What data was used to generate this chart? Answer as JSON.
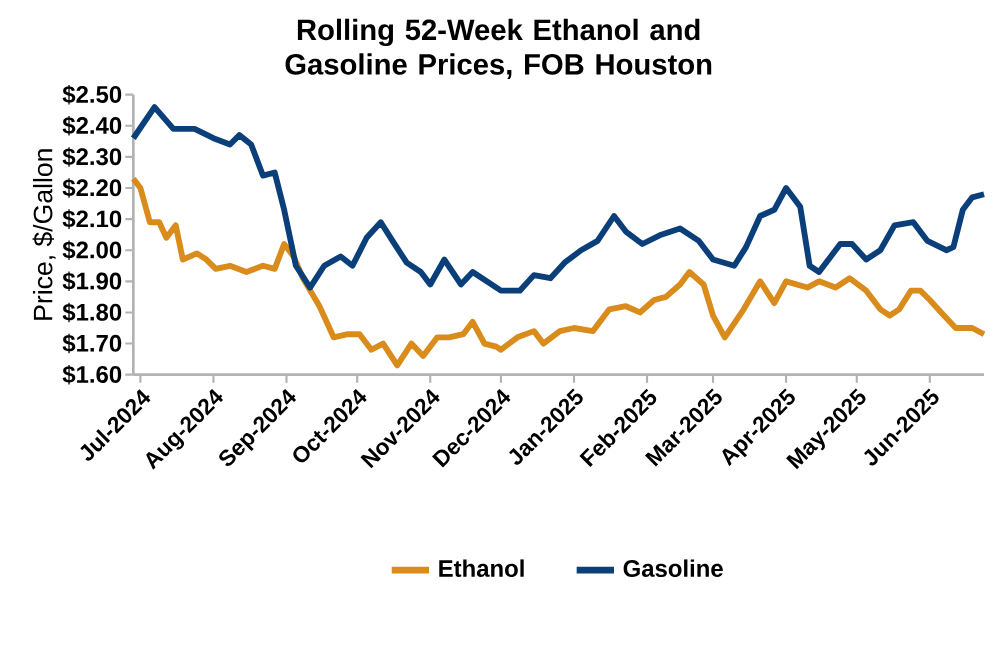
{
  "chart_data": {
    "type": "line",
    "title": "Rolling 52-Week Ethanol and Gasoline Prices, FOB Houston",
    "ylabel": "Price, $/Gallon",
    "xlim": [
      "2024-06-28",
      "2025-06-24"
    ],
    "ylim": [
      1.6,
      2.5
    ],
    "xticks": [
      {
        "value": "2024-07-01",
        "label": "Jul-2024"
      },
      {
        "value": "2024-08-01",
        "label": "Aug-2024"
      },
      {
        "value": "2024-09-01",
        "label": "Sep-2024"
      },
      {
        "value": "2024-10-01",
        "label": "Oct-2024"
      },
      {
        "value": "2024-11-01",
        "label": "Nov-2024"
      },
      {
        "value": "2024-12-01",
        "label": "Dec-2024"
      },
      {
        "value": "2025-01-01",
        "label": "Jan-2025"
      },
      {
        "value": "2025-02-01",
        "label": "Feb-2025"
      },
      {
        "value": "2025-03-01",
        "label": "Mar-2025"
      },
      {
        "value": "2025-04-01",
        "label": "Apr-2025"
      },
      {
        "value": "2025-05-01",
        "label": "May-2025"
      },
      {
        "value": "2025-06-01",
        "label": "Jun-2025"
      }
    ],
    "yticks": [
      {
        "value": 1.6,
        "label": "$1.60"
      },
      {
        "value": 1.7,
        "label": "$1.70"
      },
      {
        "value": 1.8,
        "label": "$1.80"
      },
      {
        "value": 1.9,
        "label": "$1.90"
      },
      {
        "value": 2.0,
        "label": "$2.00"
      },
      {
        "value": 2.1,
        "label": "$2.10"
      },
      {
        "value": 2.2,
        "label": "$2.20"
      },
      {
        "value": 2.3,
        "label": "$2.30"
      },
      {
        "value": 2.4,
        "label": "$2.40"
      },
      {
        "value": 2.5,
        "label": "$2.50"
      }
    ],
    "grid": false,
    "legend": "bottom",
    "marker": "none",
    "line_style": "solid",
    "series": [
      {
        "name": "Ethanol",
        "color": "#d98b1c",
        "x": [
          "2024-06-28",
          "2024-07-01",
          "2024-07-05",
          "2024-07-09",
          "2024-07-12",
          "2024-07-16",
          "2024-07-19",
          "2024-07-25",
          "2024-07-29",
          "2024-08-02",
          "2024-08-08",
          "2024-08-15",
          "2024-08-22",
          "2024-08-27",
          "2024-08-31",
          "2024-09-04",
          "2024-09-08",
          "2024-09-15",
          "2024-09-21",
          "2024-09-27",
          "2024-10-02",
          "2024-10-07",
          "2024-10-12",
          "2024-10-18",
          "2024-10-24",
          "2024-10-29",
          "2024-11-04",
          "2024-11-09",
          "2024-11-15",
          "2024-11-19",
          "2024-11-24",
          "2024-11-29",
          "2024-12-01",
          "2024-12-08",
          "2024-12-15",
          "2024-12-19",
          "2024-12-26",
          "2025-01-01",
          "2025-01-09",
          "2025-01-16",
          "2025-01-23",
          "2025-01-29",
          "2025-02-04",
          "2025-02-09",
          "2025-02-15",
          "2025-02-19",
          "2025-02-25",
          "2025-03-01",
          "2025-03-06",
          "2025-03-14",
          "2025-03-21",
          "2025-03-27",
          "2025-04-01",
          "2025-04-10",
          "2025-04-15",
          "2025-04-22",
          "2025-04-28",
          "2025-05-05",
          "2025-05-11",
          "2025-05-15",
          "2025-05-19",
          "2025-05-24",
          "2025-05-28",
          "2025-06-01",
          "2025-06-07",
          "2025-06-12",
          "2025-06-19",
          "2025-06-24"
        ],
        "values": [
          2.23,
          2.2,
          2.09,
          2.09,
          2.04,
          2.08,
          1.97,
          1.99,
          1.97,
          1.94,
          1.95,
          1.93,
          1.95,
          1.94,
          2.02,
          1.98,
          1.91,
          1.82,
          1.72,
          1.73,
          1.73,
          1.68,
          1.7,
          1.63,
          1.7,
          1.66,
          1.72,
          1.72,
          1.73,
          1.77,
          1.7,
          1.69,
          1.68,
          1.72,
          1.74,
          1.7,
          1.74,
          1.75,
          1.74,
          1.81,
          1.82,
          1.8,
          1.84,
          1.85,
          1.89,
          1.93,
          1.89,
          1.79,
          1.72,
          1.81,
          1.9,
          1.83,
          1.9,
          1.88,
          1.9,
          1.88,
          1.91,
          1.87,
          1.81,
          1.79,
          1.81,
          1.87,
          1.87,
          1.84,
          1.79,
          1.75,
          1.75,
          1.73
        ]
      },
      {
        "name": "Gasoline",
        "color": "#0b3f7a",
        "x": [
          "2024-06-28",
          "2024-07-07",
          "2024-07-15",
          "2024-07-24",
          "2024-08-01",
          "2024-08-08",
          "2024-08-12",
          "2024-08-17",
          "2024-08-22",
          "2024-08-27",
          "2024-08-31",
          "2024-09-05",
          "2024-09-11",
          "2024-09-17",
          "2024-09-24",
          "2024-09-29",
          "2024-10-05",
          "2024-10-11",
          "2024-10-16",
          "2024-10-22",
          "2024-10-28",
          "2024-11-01",
          "2024-11-07",
          "2024-11-14",
          "2024-11-19",
          "2024-11-25",
          "2024-12-01",
          "2024-12-09",
          "2024-12-15",
          "2024-12-22",
          "2024-12-28",
          "2025-01-04",
          "2025-01-11",
          "2025-01-18",
          "2025-01-23",
          "2025-01-30",
          "2025-02-07",
          "2025-02-15",
          "2025-02-23",
          "2025-03-01",
          "2025-03-10",
          "2025-03-15",
          "2025-03-21",
          "2025-03-27",
          "2025-04-01",
          "2025-04-07",
          "2025-04-11",
          "2025-04-15",
          "2025-04-24",
          "2025-04-29",
          "2025-05-05",
          "2025-05-11",
          "2025-05-17",
          "2025-05-25",
          "2025-05-31",
          "2025-06-08",
          "2025-06-11",
          "2025-06-15",
          "2025-06-19",
          "2025-06-24"
        ],
        "values": [
          2.36,
          2.46,
          2.39,
          2.39,
          2.36,
          2.34,
          2.37,
          2.34,
          2.24,
          2.25,
          2.13,
          1.95,
          1.88,
          1.95,
          1.98,
          1.95,
          2.04,
          2.09,
          2.03,
          1.96,
          1.93,
          1.89,
          1.97,
          1.89,
          1.93,
          1.9,
          1.87,
          1.87,
          1.92,
          1.91,
          1.96,
          2.0,
          2.03,
          2.11,
          2.06,
          2.02,
          2.05,
          2.07,
          2.03,
          1.97,
          1.95,
          2.01,
          2.11,
          2.13,
          2.2,
          2.14,
          1.95,
          1.93,
          2.02,
          2.02,
          1.97,
          2.0,
          2.08,
          2.09,
          2.03,
          2.0,
          2.01,
          2.13,
          2.17,
          2.18
        ]
      }
    ]
  }
}
